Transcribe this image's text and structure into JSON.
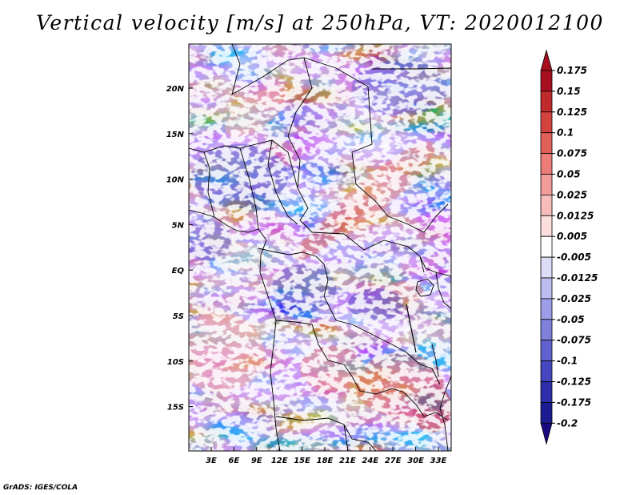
{
  "title": "Vertical velocity [m/s] at 250hPa, VT: 2020012100",
  "credit": "GrADS: IGES/COLA",
  "map": {
    "lat_labels": [
      "20N",
      "15N",
      "10N",
      "5N",
      "EQ",
      "5S",
      "10S",
      "15S"
    ],
    "lon_labels": [
      "3E",
      "6E",
      "9E",
      "12E",
      "15E",
      "18E",
      "21E",
      "24E",
      "27E",
      "30E",
      "33E"
    ]
  },
  "colorbar": {
    "levels": [
      "0.175",
      "0.15",
      "0.125",
      "0.1",
      "0.075",
      "0.05",
      "0.025",
      "0.0125",
      "0.005",
      "-0.005",
      "-0.0125",
      "-0.025",
      "-0.05",
      "-0.075",
      "-0.1",
      "-0.125",
      "-0.175",
      "-0.2"
    ],
    "colors": [
      "#a80f1e",
      "#c12a2c",
      "#d5433e",
      "#e2605a",
      "#ec7c78",
      "#f39c99",
      "#f8bdbb",
      "#fbdedd",
      "#ffffff",
      "#dcdcf7",
      "#bcbcf0",
      "#9d9de7",
      "#7f7fdc",
      "#6262cf",
      "#4646bf",
      "#2e2eab",
      "#1c1c92",
      "#1a0a80"
    ]
  }
}
